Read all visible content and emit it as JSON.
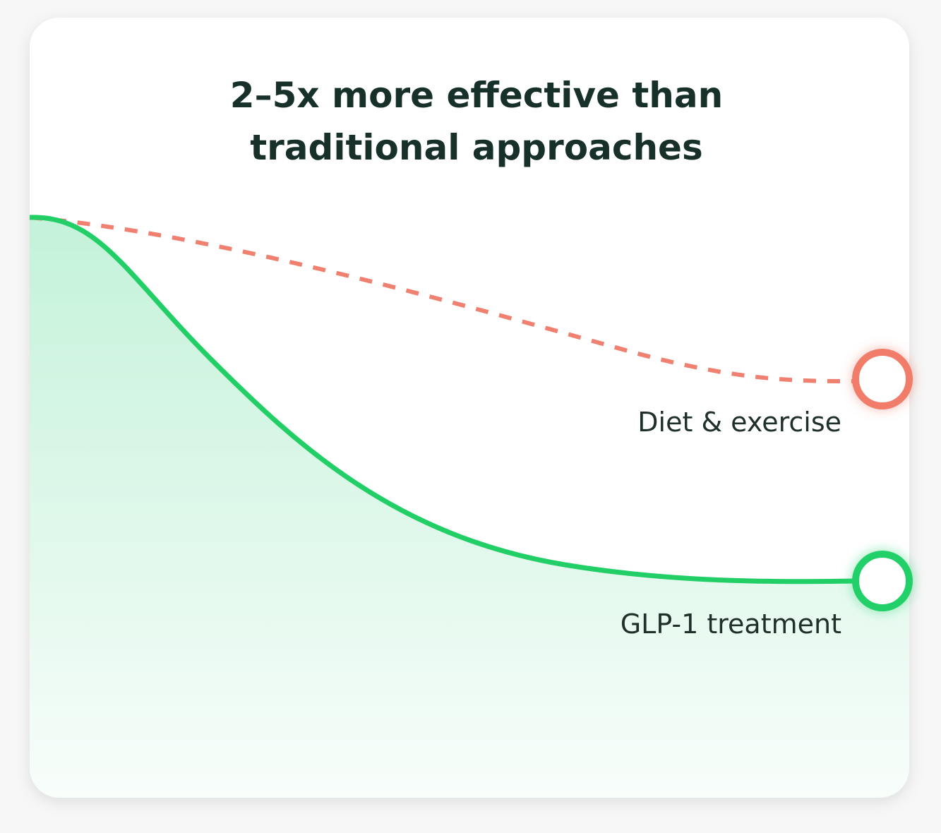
{
  "header": {
    "title": "2–5x more effective than traditional approaches"
  },
  "labels": {
    "diet": "Diet & exercise",
    "glp1": "GLP-1 treatment"
  }
}
